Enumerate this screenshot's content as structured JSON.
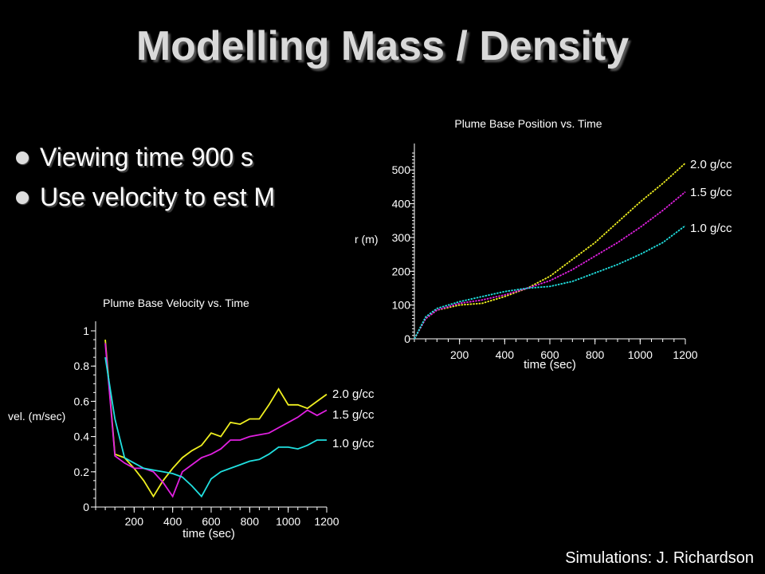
{
  "slide": {
    "title": "Modelling Mass / Density",
    "bullets": [
      "Viewing time 900 s",
      "Use velocity to est M"
    ],
    "credit": "Simulations:  J. Richardson"
  },
  "colors": {
    "2.0 g/cc": "#f0f020",
    "1.5 g/cc": "#e020e0",
    "1.0 g/cc": "#20e0e0"
  },
  "chart_data": [
    {
      "type": "line",
      "title": "Plume Base Position vs. Time",
      "xlabel": "time (sec)",
      "ylabel": "r (m)",
      "xlim": [
        0,
        1200
      ],
      "ylim": [
        0,
        550
      ],
      "xticks": [
        "200",
        "400",
        "600",
        "800",
        "1000",
        "1200"
      ],
      "yticks": [
        "0",
        "100",
        "200",
        "300",
        "400",
        "500"
      ],
      "series": [
        {
          "name": "2.0 g/cc",
          "x": [
            0,
            50,
            100,
            200,
            300,
            400,
            500,
            600,
            700,
            800,
            900,
            1000,
            1100,
            1200
          ],
          "y": [
            0,
            60,
            85,
            100,
            105,
            125,
            150,
            185,
            235,
            285,
            345,
            405,
            460,
            520
          ]
        },
        {
          "name": "1.5 g/cc",
          "x": [
            0,
            50,
            100,
            200,
            300,
            400,
            500,
            600,
            700,
            800,
            900,
            1000,
            1100,
            1200
          ],
          "y": [
            0,
            60,
            85,
            105,
            115,
            130,
            150,
            172,
            205,
            245,
            285,
            330,
            380,
            435
          ]
        },
        {
          "name": "1.0 g/cc",
          "x": [
            0,
            50,
            100,
            200,
            300,
            400,
            500,
            600,
            700,
            800,
            900,
            1000,
            1100,
            1200
          ],
          "y": [
            0,
            65,
            90,
            110,
            125,
            140,
            150,
            155,
            170,
            195,
            220,
            250,
            285,
            335
          ]
        }
      ]
    },
    {
      "type": "line",
      "title": "Plume Base Velocity vs. Time",
      "xlabel": "time (sec)",
      "ylabel": "vel. (m/sec)",
      "xlim": [
        0,
        1200
      ],
      "ylim": [
        0,
        1
      ],
      "xticks": [
        "200",
        "400",
        "600",
        "800",
        "1000",
        "1200"
      ],
      "yticks": [
        "0",
        "0.2",
        "0.4",
        "0.6",
        "0.8",
        "1"
      ],
      "series": [
        {
          "name": "2.0 g/cc",
          "x": [
            50,
            100,
            150,
            200,
            250,
            300,
            350,
            400,
            450,
            500,
            550,
            600,
            650,
            700,
            750,
            800,
            850,
            900,
            950,
            1000,
            1050,
            1100,
            1150,
            1200
          ],
          "y": [
            0.95,
            0.3,
            0.28,
            0.22,
            0.15,
            0.06,
            0.15,
            0.22,
            0.28,
            0.32,
            0.35,
            0.42,
            0.4,
            0.48,
            0.47,
            0.5,
            0.5,
            0.58,
            0.67,
            0.58,
            0.58,
            0.56,
            0.6,
            0.64
          ]
        },
        {
          "name": "1.5 g/cc",
          "x": [
            50,
            100,
            150,
            200,
            250,
            300,
            350,
            400,
            450,
            500,
            550,
            600,
            650,
            700,
            750,
            800,
            850,
            900,
            950,
            1000,
            1050,
            1100,
            1150,
            1200
          ],
          "y": [
            0.93,
            0.29,
            0.25,
            0.22,
            0.22,
            0.2,
            0.14,
            0.06,
            0.2,
            0.24,
            0.28,
            0.3,
            0.33,
            0.38,
            0.38,
            0.4,
            0.41,
            0.42,
            0.45,
            0.48,
            0.51,
            0.55,
            0.52,
            0.55
          ]
        },
        {
          "name": "1.0 g/cc",
          "x": [
            50,
            100,
            150,
            200,
            250,
            300,
            350,
            400,
            450,
            500,
            550,
            600,
            650,
            700,
            750,
            800,
            850,
            900,
            950,
            1000,
            1050,
            1100,
            1150,
            1200
          ],
          "y": [
            0.85,
            0.5,
            0.28,
            0.25,
            0.22,
            0.21,
            0.2,
            0.19,
            0.17,
            0.12,
            0.06,
            0.16,
            0.2,
            0.22,
            0.24,
            0.26,
            0.27,
            0.3,
            0.34,
            0.34,
            0.33,
            0.35,
            0.38,
            0.38
          ]
        }
      ]
    }
  ]
}
